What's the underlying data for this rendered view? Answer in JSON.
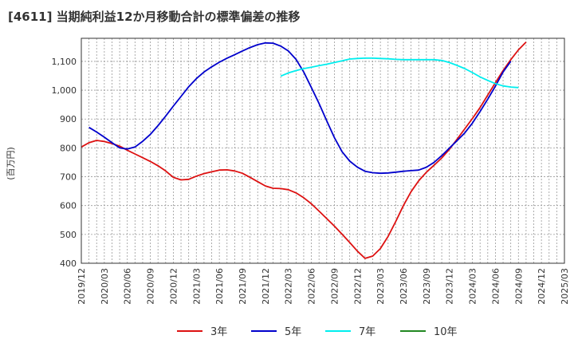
{
  "chart_data": {
    "type": "line",
    "title": "[4611]  当期純利益12か月移動合計の標準偏差の推移",
    "ylabel": "(百万円)",
    "xlabel": "",
    "ylim": [
      400,
      1180
    ],
    "y_ticks": [
      400,
      500,
      600,
      700,
      800,
      900,
      1000,
      1100
    ],
    "y_tick_labels": [
      "400",
      "500",
      "600",
      "700",
      "800",
      "900",
      "1,000",
      "1,100"
    ],
    "x_tick_labels": [
      "2019/12",
      "2020/03",
      "2020/06",
      "2020/09",
      "2020/12",
      "2021/03",
      "2021/06",
      "2021/09",
      "2021/12",
      "2022/03",
      "2022/06",
      "2022/09",
      "2022/12",
      "2023/03",
      "2023/06",
      "2023/09",
      "2023/12",
      "2024/03",
      "2024/06",
      "2024/09",
      "2024/12",
      "2025/03"
    ],
    "grid": true,
    "legend_position": "bottom",
    "series": [
      {
        "name": "3年",
        "color": "#dd1111",
        "start": "2019/12",
        "values": [
          803,
          818,
          826,
          822,
          815,
          806,
          792,
          779,
          766,
          753,
          738,
          720,
          698,
          689,
          691,
          702,
          711,
          717,
          723,
          724,
          720,
          712,
          698,
          683,
          668,
          660,
          659,
          655,
          644,
          627,
          606,
          581,
          555,
          529,
          501,
          472,
          442,
          417,
          425,
          451,
          493,
          545,
          600,
          648,
          686,
          716,
          740,
          765,
          795,
          830,
          866,
          902,
          940,
          983,
          1026,
          1068,
          1106,
          1140,
          1167
        ]
      },
      {
        "name": "5年",
        "color": "#0000cc",
        "start": "2020/01",
        "values": [
          871,
          855,
          837,
          818,
          800,
          796,
          803,
          823,
          847,
          877,
          910,
          945,
          978,
          1012,
          1040,
          1063,
          1081,
          1097,
          1111,
          1123,
          1136,
          1148,
          1158,
          1164,
          1163,
          1153,
          1136,
          1107,
          1063,
          1009,
          954,
          894,
          836,
          787,
          754,
          733,
          719,
          714,
          712,
          713,
          716,
          719,
          721,
          723,
          733,
          750,
          773,
          799,
          825,
          852,
          886,
          926,
          969,
          1014,
          1063,
          1100
        ]
      },
      {
        "name": "7年",
        "color": "#00eeee",
        "start": "2022/02",
        "values": [
          1049,
          1060,
          1068,
          1075,
          1080,
          1085,
          1090,
          1096,
          1102,
          1108,
          1110,
          1111,
          1111,
          1110,
          1109,
          1107,
          1106,
          1106,
          1106,
          1106,
          1106,
          1103,
          1096,
          1086,
          1075,
          1061,
          1046,
          1034,
          1023,
          1015,
          1011,
          1009
        ]
      },
      {
        "name": "10年",
        "color": "#228822",
        "start": "",
        "values": []
      }
    ]
  }
}
